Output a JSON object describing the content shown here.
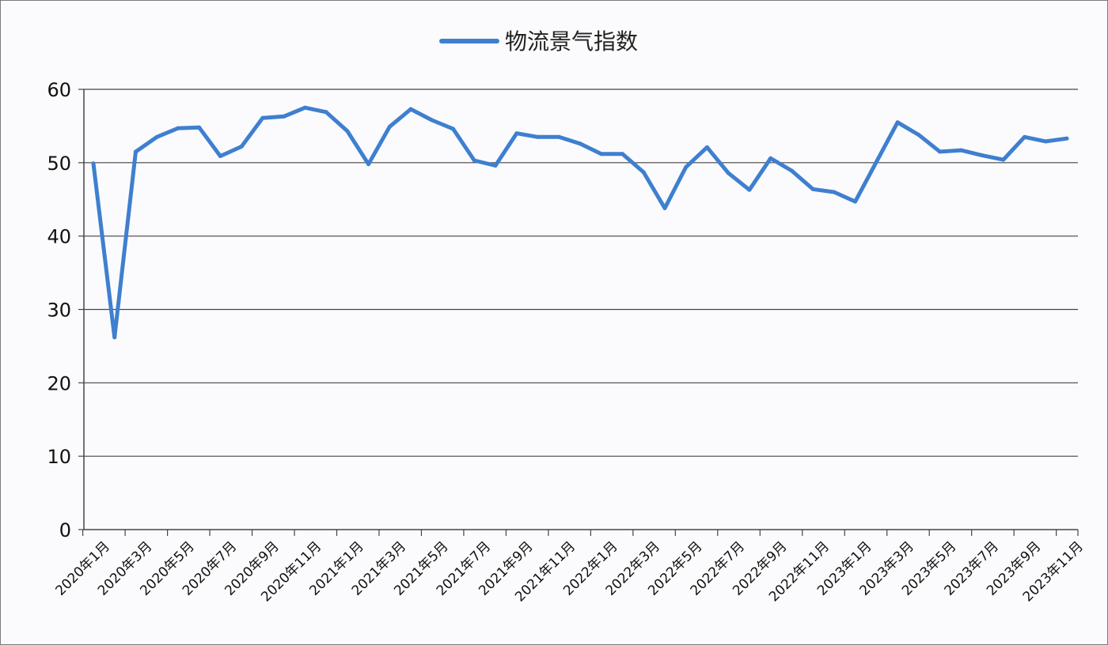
{
  "chart_data": {
    "type": "line",
    "title": "",
    "xlabel": "",
    "ylabel": "",
    "ylim": [
      0,
      60
    ],
    "yticks": [
      0,
      10,
      20,
      30,
      40,
      50,
      60
    ],
    "grid": true,
    "legend_position": "top-center",
    "x": [
      "2020年1月",
      "2020年2月",
      "2020年3月",
      "2020年4月",
      "2020年5月",
      "2020年6月",
      "2020年7月",
      "2020年8月",
      "2020年9月",
      "2020年10月",
      "2020年11月",
      "2020年12月",
      "2021年1月",
      "2021年2月",
      "2021年3月",
      "2021年4月",
      "2021年5月",
      "2021年6月",
      "2021年7月",
      "2021年8月",
      "2021年9月",
      "2021年10月",
      "2021年11月",
      "2021年12月",
      "2022年1月",
      "2022年2月",
      "2022年3月",
      "2022年4月",
      "2022年5月",
      "2022年6月",
      "2022年7月",
      "2022年8月",
      "2022年9月",
      "2022年10月",
      "2022年11月",
      "2022年12月",
      "2023年1月",
      "2023年2月",
      "2023年3月",
      "2023年4月",
      "2023年5月",
      "2023年6月",
      "2023年7月",
      "2023年8月",
      "2023年9月",
      "2023年10月",
      "2023年11月"
    ],
    "x_tick_labels": [
      "2020年1月",
      "2020年3月",
      "2020年5月",
      "2020年7月",
      "2020年9月",
      "2020年11月",
      "2021年1月",
      "2021年3月",
      "2021年5月",
      "2021年7月",
      "2021年9月",
      "2021年11月",
      "2022年1月",
      "2022年3月",
      "2022年5月",
      "2022年7月",
      "2022年9月",
      "2022年11月",
      "2023年1月",
      "2023年3月",
      "2023年5月",
      "2023年7月",
      "2023年9月",
      "2023年11月"
    ],
    "series": [
      {
        "name": "物流景气指数",
        "color": "#3f7fcf",
        "values": [
          49.9,
          26.2,
          51.5,
          53.5,
          54.7,
          54.8,
          50.9,
          52.2,
          56.1,
          56.3,
          57.5,
          56.9,
          54.3,
          49.8,
          54.9,
          57.3,
          55.8,
          54.6,
          50.3,
          49.6,
          54.0,
          53.5,
          53.5,
          52.6,
          51.2,
          51.2,
          48.7,
          43.8,
          49.4,
          52.1,
          48.6,
          46.3,
          50.6,
          48.9,
          46.4,
          46.0,
          44.7,
          50.1,
          55.5,
          53.8,
          51.5,
          51.7,
          51.0,
          50.4,
          53.5,
          52.9,
          53.3
        ]
      }
    ]
  }
}
